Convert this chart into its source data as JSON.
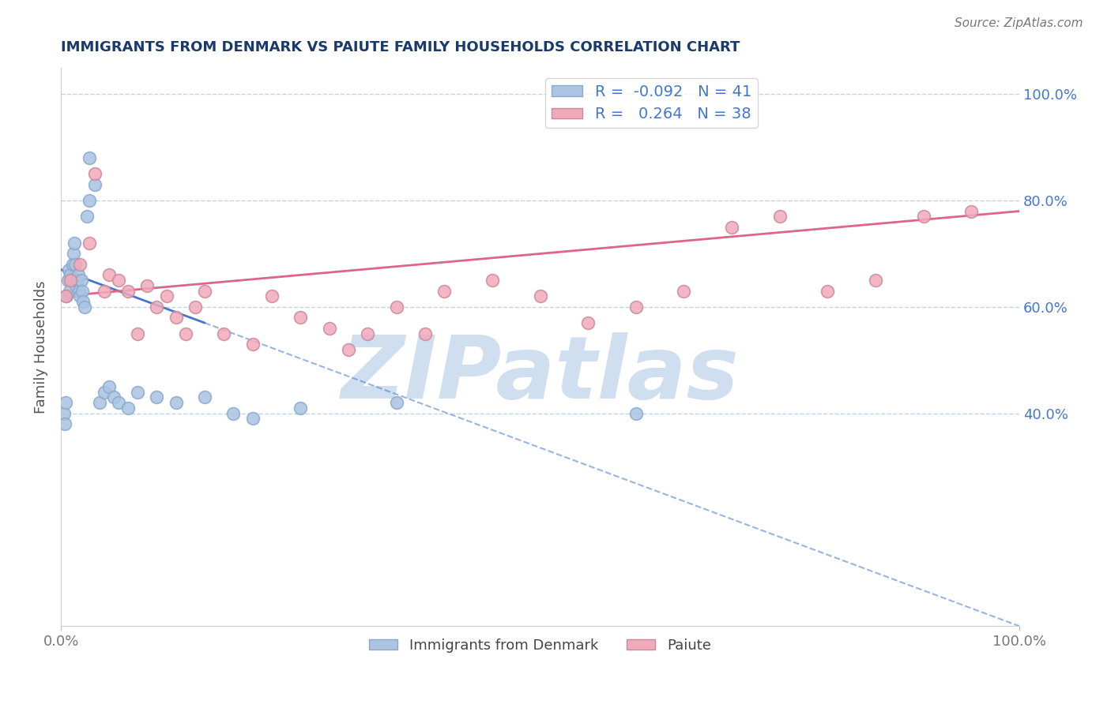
{
  "title": "IMMIGRANTS FROM DENMARK VS PAIUTE FAMILY HOUSEHOLDS CORRELATION CHART",
  "source_text": "Source: ZipAtlas.com",
  "ylabel": "Family Households",
  "legend_labels": [
    "Immigrants from Denmark",
    "Paiute"
  ],
  "blue_R": -0.092,
  "blue_N": 41,
  "pink_R": 0.264,
  "pink_N": 38,
  "blue_color": "#aac4e2",
  "pink_color": "#f0aabb",
  "blue_line_color": "#4477cc",
  "pink_line_color": "#dd6688",
  "blue_marker_edge": "#88aacc",
  "pink_marker_edge": "#cc8899",
  "watermark": "ZIPatlas",
  "blue_scatter_x": [
    0.3,
    0.4,
    0.5,
    0.6,
    0.7,
    0.8,
    0.9,
    1.0,
    1.1,
    1.2,
    1.3,
    1.4,
    1.5,
    1.6,
    1.7,
    1.8,
    1.9,
    2.0,
    2.1,
    2.2,
    2.3,
    2.5,
    2.7,
    3.0,
    3.0,
    3.5,
    4.0,
    4.5,
    5.0,
    5.5,
    6.0,
    7.0,
    8.0,
    10.0,
    12.0,
    15.0,
    18.0,
    20.0,
    25.0,
    35.0,
    60.0
  ],
  "blue_scatter_y": [
    40.0,
    38.0,
    42.0,
    62.0,
    65.0,
    67.0,
    63.0,
    66.0,
    65.0,
    68.0,
    70.0,
    72.0,
    68.0,
    64.0,
    65.0,
    66.0,
    63.0,
    62.0,
    65.0,
    63.0,
    61.0,
    60.0,
    77.0,
    88.0,
    80.0,
    83.0,
    42.0,
    44.0,
    45.0,
    43.0,
    42.0,
    41.0,
    44.0,
    43.0,
    42.0,
    43.0,
    40.0,
    39.0,
    41.0,
    42.0,
    40.0
  ],
  "pink_scatter_x": [
    0.5,
    1.0,
    2.0,
    3.0,
    3.5,
    4.5,
    5.0,
    6.0,
    7.0,
    8.0,
    9.0,
    10.0,
    11.0,
    12.0,
    13.0,
    14.0,
    15.0,
    17.0,
    20.0,
    22.0,
    25.0,
    28.0,
    30.0,
    32.0,
    35.0,
    38.0,
    40.0,
    45.0,
    50.0,
    55.0,
    60.0,
    65.0,
    70.0,
    75.0,
    80.0,
    85.0,
    90.0,
    95.0
  ],
  "pink_scatter_y": [
    62.0,
    65.0,
    68.0,
    72.0,
    85.0,
    63.0,
    66.0,
    65.0,
    63.0,
    55.0,
    64.0,
    60.0,
    62.0,
    58.0,
    55.0,
    60.0,
    63.0,
    55.0,
    53.0,
    62.0,
    58.0,
    56.0,
    52.0,
    55.0,
    60.0,
    55.0,
    63.0,
    65.0,
    62.0,
    57.0,
    60.0,
    63.0,
    75.0,
    77.0,
    63.0,
    65.0,
    77.0,
    78.0
  ],
  "xlim": [
    0,
    100
  ],
  "ylim": [
    0,
    105
  ],
  "blue_line_x0": 0.0,
  "blue_line_y0": 67.0,
  "blue_line_x1": 15.0,
  "blue_line_y1": 57.0,
  "blue_dash_x0": 15.0,
  "blue_dash_y0": 57.0,
  "blue_dash_x1": 100.0,
  "blue_dash_y1": 0.0,
  "pink_line_x0": 0.0,
  "pink_line_y0": 62.0,
  "pink_line_x1": 100.0,
  "pink_line_y1": 78.0,
  "right_yticks": [
    40,
    60,
    80,
    100
  ],
  "right_ytick_labels": [
    "40.0%",
    "60.0%",
    "80.0%",
    "100.0%"
  ],
  "xtick_positions": [
    0,
    100
  ],
  "xtick_labels": [
    "0.0%",
    "100.0%"
  ],
  "title_color": "#1a3a6b",
  "source_color": "#777777",
  "axis_label_color": "#555555",
  "tick_color": "#777777",
  "grid_color": "#c0d4e8",
  "watermark_color": "#d0dff0",
  "title_fontsize": 13,
  "tick_fontsize": 13,
  "label_fontsize": 13,
  "legend_fontsize": 14
}
